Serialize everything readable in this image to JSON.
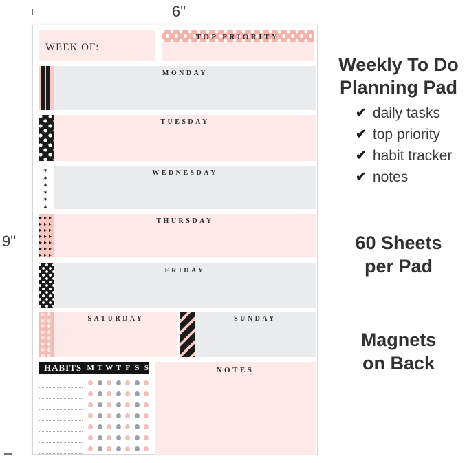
{
  "dimensions": {
    "width_label": "6\"",
    "height_label": "9\""
  },
  "planner": {
    "week_of_label": "WEEK OF:",
    "top_priority_label": "TOP PRIORITY",
    "days": [
      {
        "name": "MONDAY"
      },
      {
        "name": "TUESDAY"
      },
      {
        "name": "WEDNESDAY"
      },
      {
        "name": "THURSDAY"
      },
      {
        "name": "FRIDAY"
      }
    ],
    "weekend": {
      "saturday_label": "SATURDAY",
      "sunday_label": "SUNDAY"
    },
    "habits": {
      "title": "HABITS",
      "day_initials": [
        "M",
        "T",
        "W",
        "T",
        "F",
        "S",
        "S"
      ],
      "grid": {
        "rows": 7,
        "cols": 7
      },
      "line_count": 7,
      "dot_pink": "#f2beb6",
      "dot_grey": "#9da0a5"
    },
    "notes_label": "NOTES"
  },
  "colors": {
    "box_pink": "#fdeae8",
    "box_grey": "#e9ebed",
    "tape_pink": "#f2b3ab",
    "tape_black": "#1b1b1b"
  },
  "marketing": {
    "title_line1": "Weekly To Do",
    "title_line2": "Planning Pad",
    "check_icon": "✔",
    "features": [
      "daily tasks",
      "top priority",
      "habit tracker",
      "notes"
    ],
    "sheets_line1": "60 Sheets",
    "sheets_line2": "per Pad",
    "magnets_line1": "Magnets",
    "magnets_line2": "on Back"
  }
}
